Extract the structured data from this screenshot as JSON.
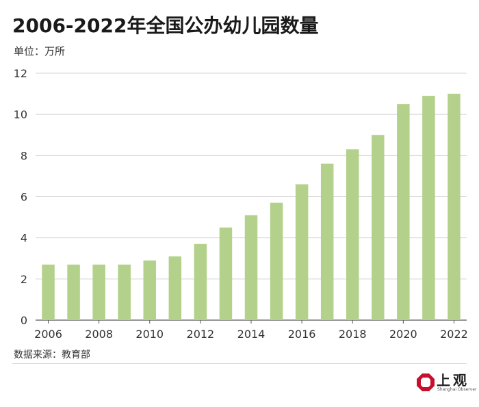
{
  "header": {
    "title": "2006-2022年全国公办幼儿园数量",
    "unit": "单位：万所"
  },
  "footer": {
    "source": "数据来源：教育部"
  },
  "logo": {
    "name": "上观",
    "subtitle": "Shanghai Observer",
    "accent": "#c8102e"
  },
  "chart_data": {
    "type": "bar",
    "title": "2006-2022年全国公办幼儿园数量",
    "xlabel": "",
    "ylabel": "单位：万所",
    "categories": [
      "2006",
      "2007",
      "2008",
      "2009",
      "2010",
      "2011",
      "2012",
      "2013",
      "2014",
      "2015",
      "2016",
      "2017",
      "2018",
      "2019",
      "2020",
      "2021",
      "2022"
    ],
    "values": [
      2.7,
      2.7,
      2.7,
      2.7,
      2.9,
      3.1,
      3.7,
      4.5,
      5.1,
      5.7,
      6.6,
      7.6,
      8.3,
      9.0,
      10.5,
      10.9,
      11.0
    ],
    "x_tick_labels": [
      "2006",
      "2008",
      "2010",
      "2012",
      "2014",
      "2016",
      "2018",
      "2020",
      "2022"
    ],
    "y_ticks": [
      0,
      2,
      4,
      6,
      8,
      10,
      12
    ],
    "ylim": [
      0,
      12
    ],
    "grid": true,
    "bar_color": "#b3d18a"
  }
}
